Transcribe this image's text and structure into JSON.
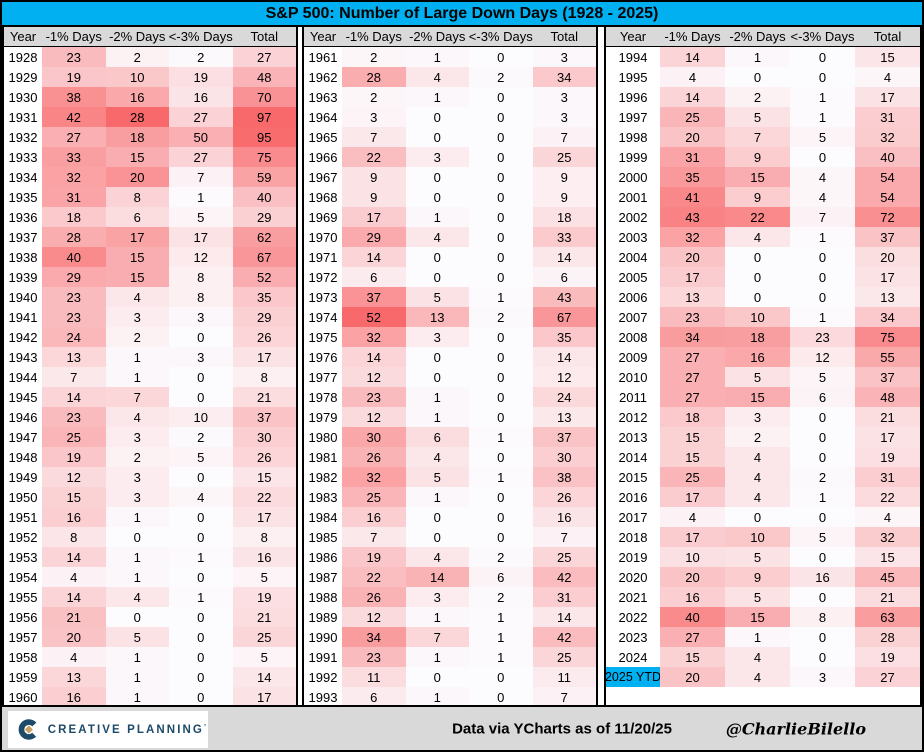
{
  "title": "S&P 500: Number of Large Down Days (1928 - 2025)",
  "colors": {
    "accent": "#00B0F0",
    "header_bg": "#D9D9D9",
    "footer_bg": "#D9D9D9",
    "heat_low": "#FCFCFF",
    "heat_high": "#F8696B",
    "logo_navy": "#1D4A68",
    "logo_gold": "#C8A165"
  },
  "footer": {
    "logo_text": "CREATIVE PLANNING",
    "logo_mark": "’",
    "data_note": "Data via YCharts as of 11/20/25",
    "handle": "@CharlieBilello"
  },
  "chart_data": {
    "type": "heatmap",
    "title": "S&P 500: Number of Large Down Days (1928 - 2025)",
    "columns": [
      "Year",
      "-1% Days",
      "-2% Days",
      "<-3% Days",
      "Total"
    ],
    "highlight_year": "2025 YTD",
    "heat_scale": {
      "low": "#FCFCFF",
      "high": "#F8696B",
      "rule": "per-column white-to-red; -1% scaled to max 52, -2% to max 28, <-3% and Total share max 97"
    },
    "panels": [
      {
        "rows": [
          [
            "1928",
            23,
            2,
            2,
            27
          ],
          [
            "1929",
            19,
            10,
            19,
            48
          ],
          [
            "1930",
            38,
            16,
            16,
            70
          ],
          [
            "1931",
            42,
            28,
            27,
            97
          ],
          [
            "1932",
            27,
            18,
            50,
            95
          ],
          [
            "1933",
            33,
            15,
            27,
            75
          ],
          [
            "1934",
            32,
            20,
            7,
            59
          ],
          [
            "1935",
            31,
            8,
            1,
            40
          ],
          [
            "1936",
            18,
            6,
            5,
            29
          ],
          [
            "1937",
            28,
            17,
            17,
            62
          ],
          [
            "1938",
            40,
            15,
            12,
            67
          ],
          [
            "1939",
            29,
            15,
            8,
            52
          ],
          [
            "1940",
            23,
            4,
            8,
            35
          ],
          [
            "1941",
            23,
            3,
            3,
            29
          ],
          [
            "1942",
            24,
            2,
            0,
            26
          ],
          [
            "1943",
            13,
            1,
            3,
            17
          ],
          [
            "1944",
            7,
            1,
            0,
            8
          ],
          [
            "1945",
            14,
            7,
            0,
            21
          ],
          [
            "1946",
            23,
            4,
            10,
            37
          ],
          [
            "1947",
            25,
            3,
            2,
            30
          ],
          [
            "1948",
            19,
            2,
            5,
            26
          ],
          [
            "1949",
            12,
            3,
            0,
            15
          ],
          [
            "1950",
            15,
            3,
            4,
            22
          ],
          [
            "1951",
            16,
            1,
            0,
            17
          ],
          [
            "1952",
            8,
            0,
            0,
            8
          ],
          [
            "1953",
            14,
            1,
            1,
            16
          ],
          [
            "1954",
            4,
            1,
            0,
            5
          ],
          [
            "1955",
            14,
            4,
            1,
            19
          ],
          [
            "1956",
            21,
            0,
            0,
            21
          ],
          [
            "1957",
            20,
            5,
            0,
            25
          ],
          [
            "1958",
            4,
            1,
            0,
            5
          ],
          [
            "1959",
            13,
            1,
            0,
            14
          ],
          [
            "1960",
            16,
            1,
            0,
            17
          ]
        ]
      },
      {
        "rows": [
          [
            "1961",
            2,
            1,
            0,
            3
          ],
          [
            "1962",
            28,
            4,
            2,
            34
          ],
          [
            "1963",
            2,
            1,
            0,
            3
          ],
          [
            "1964",
            3,
            0,
            0,
            3
          ],
          [
            "1965",
            7,
            0,
            0,
            7
          ],
          [
            "1966",
            22,
            3,
            0,
            25
          ],
          [
            "1967",
            9,
            0,
            0,
            9
          ],
          [
            "1968",
            9,
            0,
            0,
            9
          ],
          [
            "1969",
            17,
            1,
            0,
            18
          ],
          [
            "1970",
            29,
            4,
            0,
            33
          ],
          [
            "1971",
            14,
            0,
            0,
            14
          ],
          [
            "1972",
            6,
            0,
            0,
            6
          ],
          [
            "1973",
            37,
            5,
            1,
            43
          ],
          [
            "1974",
            52,
            13,
            2,
            67
          ],
          [
            "1975",
            32,
            3,
            0,
            35
          ],
          [
            "1976",
            14,
            0,
            0,
            14
          ],
          [
            "1977",
            12,
            0,
            0,
            12
          ],
          [
            "1978",
            23,
            1,
            0,
            24
          ],
          [
            "1979",
            12,
            1,
            0,
            13
          ],
          [
            "1980",
            30,
            6,
            1,
            37
          ],
          [
            "1981",
            26,
            4,
            0,
            30
          ],
          [
            "1982",
            32,
            5,
            1,
            38
          ],
          [
            "1983",
            25,
            1,
            0,
            26
          ],
          [
            "1984",
            16,
            0,
            0,
            16
          ],
          [
            "1985",
            7,
            0,
            0,
            7
          ],
          [
            "1986",
            19,
            4,
            2,
            25
          ],
          [
            "1987",
            22,
            14,
            6,
            42
          ],
          [
            "1988",
            26,
            3,
            2,
            31
          ],
          [
            "1989",
            12,
            1,
            1,
            14
          ],
          [
            "1990",
            34,
            7,
            1,
            42
          ],
          [
            "1991",
            23,
            1,
            1,
            25
          ],
          [
            "1992",
            11,
            0,
            0,
            11
          ],
          [
            "1993",
            6,
            1,
            0,
            7
          ]
        ]
      },
      {
        "rows": [
          [
            "1994",
            14,
            1,
            0,
            15
          ],
          [
            "1995",
            4,
            0,
            0,
            4
          ],
          [
            "1996",
            14,
            2,
            1,
            17
          ],
          [
            "1997",
            25,
            5,
            1,
            31
          ],
          [
            "1998",
            20,
            7,
            5,
            32
          ],
          [
            "1999",
            31,
            9,
            0,
            40
          ],
          [
            "2000",
            35,
            15,
            4,
            54
          ],
          [
            "2001",
            41,
            9,
            4,
            54
          ],
          [
            "2002",
            43,
            22,
            7,
            72
          ],
          [
            "2003",
            32,
            4,
            1,
            37
          ],
          [
            "2004",
            20,
            0,
            0,
            20
          ],
          [
            "2005",
            17,
            0,
            0,
            17
          ],
          [
            "2006",
            13,
            0,
            0,
            13
          ],
          [
            "2007",
            23,
            10,
            1,
            34
          ],
          [
            "2008",
            34,
            18,
            23,
            75
          ],
          [
            "2009",
            27,
            16,
            12,
            55
          ],
          [
            "2010",
            27,
            5,
            5,
            37
          ],
          [
            "2011",
            27,
            15,
            6,
            48
          ],
          [
            "2012",
            18,
            3,
            0,
            21
          ],
          [
            "2013",
            15,
            2,
            0,
            17
          ],
          [
            "2014",
            15,
            4,
            0,
            19
          ],
          [
            "2015",
            25,
            4,
            2,
            31
          ],
          [
            "2016",
            17,
            4,
            1,
            22
          ],
          [
            "2017",
            4,
            0,
            0,
            4
          ],
          [
            "2018",
            17,
            10,
            5,
            32
          ],
          [
            "2019",
            10,
            5,
            0,
            15
          ],
          [
            "2020",
            20,
            9,
            16,
            45
          ],
          [
            "2021",
            16,
            5,
            0,
            21
          ],
          [
            "2022",
            40,
            15,
            8,
            63
          ],
          [
            "2023",
            27,
            1,
            0,
            28
          ],
          [
            "2024",
            15,
            4,
            0,
            19
          ],
          [
            "2025 YTD",
            20,
            4,
            3,
            27
          ]
        ]
      }
    ]
  }
}
